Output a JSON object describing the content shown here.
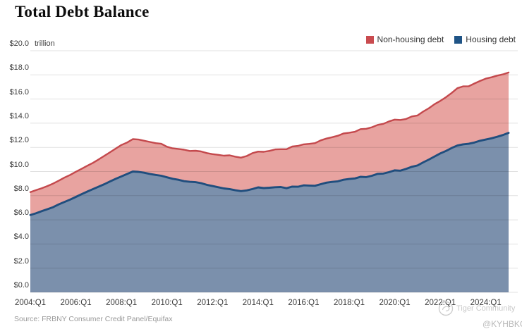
{
  "title": "Total Debt Balance",
  "y_axis_unit": "trillion",
  "source": "Source: FRBNY Consumer Credit Panel/Equifax",
  "legend": [
    {
      "label": "Non-housing debt",
      "color": "#c94b4f"
    },
    {
      "label": "Housing debt",
      "color": "#1f5486"
    }
  ],
  "watermark": {
    "brand": "Tiger Community",
    "handle": "@KYHBKO"
  },
  "chart_data": {
    "type": "area",
    "stacked": true,
    "title": "Total Debt Balance",
    "unit": "trillion USD",
    "x_frequency": "quarterly",
    "x_range": [
      "2004:Q1",
      "2025:Q1"
    ],
    "ylim": [
      0,
      20
    ],
    "grid": "horizontal",
    "legend_position": "top-right",
    "y_ticks": [
      {
        "value": 20,
        "label": "$20.0"
      },
      {
        "value": 18,
        "label": "$18.0"
      },
      {
        "value": 16,
        "label": "$16.0"
      },
      {
        "value": 14,
        "label": "$14.0"
      },
      {
        "value": 12,
        "label": "$12.0"
      },
      {
        "value": 10,
        "label": "$10.0"
      },
      {
        "value": 8,
        "label": "$8.0"
      },
      {
        "value": 6,
        "label": "$6.0"
      },
      {
        "value": 4,
        "label": "$4.0"
      },
      {
        "value": 2,
        "label": "$2.0"
      },
      {
        "value": 0,
        "label": "$0.0"
      }
    ],
    "x_ticks": [
      {
        "index": 0,
        "label": "2004:Q1"
      },
      {
        "index": 8,
        "label": "2006:Q1"
      },
      {
        "index": 16,
        "label": "2008:Q1"
      },
      {
        "index": 24,
        "label": "2010:Q1"
      },
      {
        "index": 32,
        "label": "2012:Q1"
      },
      {
        "index": 40,
        "label": "2014:Q1"
      },
      {
        "index": 48,
        "label": "2016:Q1"
      },
      {
        "index": 56,
        "label": "2018:Q1"
      },
      {
        "index": 64,
        "label": "2020:Q1"
      },
      {
        "index": 72,
        "label": "2022:Q1"
      },
      {
        "index": 80,
        "label": "2024:Q1"
      }
    ],
    "series": [
      {
        "name": "Housing debt",
        "fill_color": "#7b90ac",
        "line_color": "#204e7e",
        "values": [
          6.4,
          6.55,
          6.72,
          6.88,
          7.05,
          7.28,
          7.48,
          7.68,
          7.9,
          8.12,
          8.34,
          8.55,
          8.75,
          8.95,
          9.18,
          9.4,
          9.6,
          9.8,
          10.0,
          9.97,
          9.9,
          9.8,
          9.72,
          9.65,
          9.52,
          9.4,
          9.32,
          9.2,
          9.15,
          9.12,
          9.04,
          8.9,
          8.8,
          8.7,
          8.6,
          8.55,
          8.45,
          8.38,
          8.44,
          8.55,
          8.69,
          8.63,
          8.66,
          8.7,
          8.72,
          8.62,
          8.75,
          8.74,
          8.86,
          8.84,
          8.82,
          8.95,
          9.08,
          9.14,
          9.19,
          9.32,
          9.38,
          9.43,
          9.56,
          9.54,
          9.65,
          9.81,
          9.83,
          9.95,
          10.1,
          10.07,
          10.22,
          10.39,
          10.5,
          10.76,
          10.99,
          11.25,
          11.5,
          11.7,
          11.95,
          12.15,
          12.25,
          12.3,
          12.4,
          12.55,
          12.65,
          12.75,
          12.88,
          13.02,
          13.2
        ]
      },
      {
        "name": "Non-housing debt",
        "fill_color": "#e8a3a0",
        "line_color": "#c4494d",
        "values": [
          1.9,
          1.91,
          1.9,
          1.92,
          1.95,
          1.97,
          2.02,
          2.04,
          2.08,
          2.1,
          2.14,
          2.17,
          2.25,
          2.35,
          2.42,
          2.5,
          2.6,
          2.6,
          2.68,
          2.68,
          2.65,
          2.65,
          2.63,
          2.65,
          2.53,
          2.52,
          2.55,
          2.61,
          2.55,
          2.6,
          2.62,
          2.63,
          2.64,
          2.68,
          2.71,
          2.79,
          2.78,
          2.77,
          2.84,
          2.97,
          2.96,
          3.0,
          3.05,
          3.13,
          3.13,
          3.23,
          3.32,
          3.38,
          3.39,
          3.45,
          3.53,
          3.63,
          3.65,
          3.7,
          3.77,
          3.83,
          3.83,
          3.86,
          3.95,
          4.0,
          4.02,
          4.05,
          4.12,
          4.2,
          4.2,
          4.2,
          4.13,
          4.17,
          4.14,
          4.2,
          4.25,
          4.33,
          4.34,
          4.45,
          4.56,
          4.75,
          4.8,
          4.76,
          4.89,
          4.95,
          5.04,
          5.05,
          5.06,
          5.02,
          5.0
        ]
      }
    ]
  }
}
